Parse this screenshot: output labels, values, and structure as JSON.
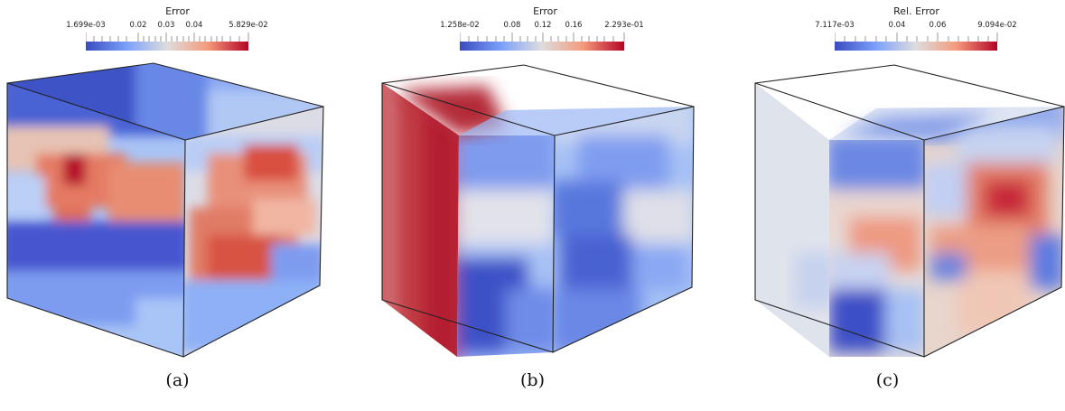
{
  "colormap": {
    "low": "#3a4cc0",
    "mid": "#dddddd",
    "high": "#b40426"
  },
  "panels": [
    {
      "caption": "(a)",
      "colorbar": {
        "title": "Error",
        "ticks": [
          "1.699e-03",
          "0.02",
          "0.03",
          "0.04",
          "5.829e-02"
        ]
      }
    },
    {
      "caption": "(b)",
      "colorbar": {
        "title": "Error",
        "ticks": [
          "1.258e-02",
          "0.08",
          "0.12",
          "0.16",
          "2.293e-01"
        ]
      }
    },
    {
      "caption": "(c)",
      "colorbar": {
        "title": "Rel. Error",
        "ticks": [
          "7.117e-03",
          "0.04",
          "0.06",
          "9.094e-02"
        ]
      }
    }
  ]
}
